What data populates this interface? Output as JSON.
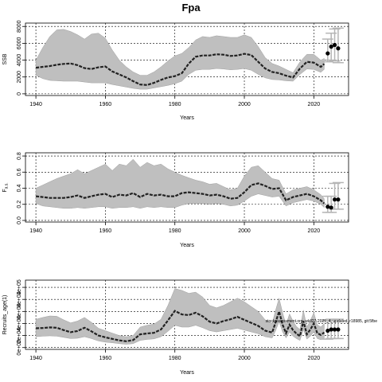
{
  "title": "Fpa",
  "chart_data": [
    {
      "type": "line",
      "ylabel": "SSB",
      "xlabel": "Years",
      "xlim": [
        1937,
        2030
      ],
      "ylim": [
        -200,
        8400
      ],
      "x_ticks": [
        1940,
        1960,
        1980,
        2000,
        2020
      ],
      "y_ticks": [
        0,
        2000,
        4000,
        6000,
        8000
      ],
      "y_tick_labels": [
        "0",
        "2000",
        "4000",
        "6000",
        "8000"
      ],
      "grid": true,
      "series": [
        {
          "x": [
            1940,
            1942,
            1944,
            1946,
            1948,
            1950,
            1952,
            1954,
            1956,
            1958,
            1960,
            1962,
            1964,
            1966,
            1968,
            1970,
            1972,
            1974,
            1976,
            1978,
            1980,
            1982,
            1984,
            1986,
            1988,
            1990,
            1992,
            1994,
            1996,
            1998,
            2000,
            2002,
            2004,
            2006,
            2008,
            2010,
            2012,
            2014,
            2016,
            2018,
            2020,
            2022,
            2023
          ],
          "median": [
            3100,
            3200,
            3300,
            3450,
            3550,
            3600,
            3400,
            3050,
            2950,
            3150,
            3250,
            2650,
            2300,
            1950,
            1500,
            1100,
            1050,
            1300,
            1650,
            1950,
            2100,
            2450,
            3600,
            4400,
            4550,
            4550,
            4700,
            4650,
            4500,
            4550,
            4750,
            4600,
            3800,
            3000,
            2600,
            2450,
            2150,
            1950,
            3000,
            3800,
            3700,
            3200,
            3550
          ],
          "lower": [
            2200,
            1800,
            1600,
            1550,
            1500,
            1500,
            1500,
            1400,
            1300,
            1300,
            1300,
            1100,
            950,
            800,
            650,
            550,
            550,
            700,
            850,
            1000,
            1200,
            1500,
            2300,
            2800,
            2900,
            2900,
            3000,
            2950,
            2850,
            2900,
            3000,
            2800,
            2300,
            1900,
            1700,
            1650,
            1550,
            1500,
            2300,
            2950,
            2900,
            2550,
            2900
          ],
          "upper": [
            4000,
            5500,
            6800,
            7600,
            7650,
            7400,
            7000,
            6500,
            7100,
            7200,
            6600,
            5200,
            4000,
            3200,
            2600,
            2200,
            2200,
            2600,
            3200,
            3900,
            4500,
            4800,
            5500,
            6400,
            6800,
            6700,
            6900,
            6800,
            6700,
            6700,
            7000,
            6700,
            5600,
            4300,
            3600,
            3300,
            2900,
            2500,
            3800,
            4700,
            4700,
            4000,
            4200
          ]
        }
      ],
      "projection_points": [
        {
          "x": 2024,
          "y": 4800,
          "lower": 3800,
          "upper": 6500
        },
        {
          "x": 2025,
          "y": 5600,
          "lower": 4000,
          "upper": 7200
        },
        {
          "x": 2026,
          "y": 5800,
          "lower": 3900,
          "upper": 7700
        },
        {
          "x": 2027,
          "y": 5400,
          "lower": 3700,
          "upper": 7800
        }
      ]
    },
    {
      "type": "line",
      "ylabel": "F",
      "ylabel_sub": "a.s.",
      "xlabel": "Years",
      "xlim": [
        1937,
        2030
      ],
      "ylim": [
        -0.02,
        0.84
      ],
      "x_ticks": [
        1940,
        1960,
        1980,
        2000,
        2020
      ],
      "y_ticks": [
        0.0,
        0.2,
        0.4,
        0.6,
        0.8
      ],
      "y_tick_labels": [
        "0.0",
        "0.2",
        "0.4",
        "0.6",
        "0.8"
      ],
      "grid": true,
      "series": [
        {
          "x": [
            1940,
            1942,
            1944,
            1946,
            1948,
            1950,
            1952,
            1954,
            1956,
            1958,
            1960,
            1962,
            1964,
            1966,
            1968,
            1970,
            1972,
            1974,
            1976,
            1978,
            1980,
            1982,
            1984,
            1986,
            1988,
            1990,
            1992,
            1994,
            1996,
            1998,
            2000,
            2002,
            2004,
            2006,
            2008,
            2010,
            2012,
            2014,
            2016,
            2018,
            2020,
            2022,
            2023
          ],
          "median": [
            0.3,
            0.29,
            0.28,
            0.28,
            0.28,
            0.29,
            0.31,
            0.28,
            0.3,
            0.32,
            0.33,
            0.29,
            0.32,
            0.31,
            0.34,
            0.29,
            0.33,
            0.31,
            0.32,
            0.3,
            0.3,
            0.34,
            0.35,
            0.34,
            0.33,
            0.31,
            0.32,
            0.3,
            0.27,
            0.28,
            0.35,
            0.44,
            0.46,
            0.43,
            0.39,
            0.4,
            0.25,
            0.29,
            0.31,
            0.33,
            0.3,
            0.25,
            0.21
          ],
          "lower": [
            0.21,
            0.18,
            0.17,
            0.16,
            0.15,
            0.15,
            0.16,
            0.15,
            0.16,
            0.17,
            0.17,
            0.15,
            0.16,
            0.16,
            0.17,
            0.15,
            0.17,
            0.16,
            0.17,
            0.16,
            0.16,
            0.19,
            0.21,
            0.21,
            0.21,
            0.2,
            0.21,
            0.2,
            0.18,
            0.19,
            0.24,
            0.3,
            0.33,
            0.31,
            0.29,
            0.3,
            0.18,
            0.22,
            0.24,
            0.26,
            0.24,
            0.2,
            0.16
          ],
          "upper": [
            0.4,
            0.44,
            0.48,
            0.52,
            0.55,
            0.58,
            0.63,
            0.58,
            0.62,
            0.66,
            0.7,
            0.62,
            0.7,
            0.68,
            0.76,
            0.66,
            0.72,
            0.68,
            0.7,
            0.64,
            0.6,
            0.56,
            0.53,
            0.5,
            0.48,
            0.45,
            0.46,
            0.42,
            0.38,
            0.4,
            0.55,
            0.66,
            0.68,
            0.6,
            0.52,
            0.5,
            0.33,
            0.38,
            0.4,
            0.42,
            0.38,
            0.32,
            0.27
          ]
        }
      ],
      "projection_points": [
        {
          "x": 2024,
          "y": 0.17,
          "lower": 0.1,
          "upper": 0.3
        },
        {
          "x": 2025,
          "y": 0.16,
          "lower": 0.1,
          "upper": 0.3
        },
        {
          "x": 2026,
          "y": 0.26,
          "lower": 0.14,
          "upper": 0.46
        },
        {
          "x": 2027,
          "y": 0.26,
          "lower": 0.14,
          "upper": 0.47
        }
      ]
    },
    {
      "type": "line",
      "ylabel": "Recruits_age(1)",
      "xlabel": "Years",
      "xlim": [
        1937,
        2030
      ],
      "ylim": [
        -3000,
        112000
      ],
      "x_ticks": [
        1940,
        1960,
        1980,
        2000,
        2020
      ],
      "y_ticks": [
        0,
        20000,
        40000,
        60000,
        80000,
        100000
      ],
      "y_tick_labels": [
        "0e+00",
        "2e+04",
        "4e+04",
        "6e+04",
        "8e+04",
        "1e+05"
      ],
      "grid": true,
      "annotation": "stockassessment.org, wkll27-2025_4_updated, r18985, git:5fbe",
      "series": [
        {
          "x": [
            1940,
            1942,
            1944,
            1946,
            1948,
            1950,
            1952,
            1954,
            1956,
            1958,
            1960,
            1962,
            1964,
            1966,
            1968,
            1970,
            1972,
            1974,
            1976,
            1978,
            1980,
            1982,
            1984,
            1986,
            1988,
            1990,
            1992,
            1994,
            1996,
            1998,
            2000,
            2002,
            2004,
            2006,
            2008,
            2009,
            2010,
            2011,
            2012,
            2013,
            2014,
            2015,
            2016,
            2017,
            2018,
            2019,
            2020,
            2021,
            2022,
            2023
          ],
          "median": [
            32000,
            32500,
            33500,
            33000,
            29000,
            25500,
            27500,
            33000,
            27000,
            20000,
            17000,
            14500,
            12000,
            10500,
            12500,
            22000,
            23500,
            24500,
            30000,
            45000,
            61000,
            55000,
            54000,
            58000,
            52000,
            43000,
            40000,
            44000,
            47000,
            51000,
            46000,
            41000,
            36000,
            28000,
            25000,
            42000,
            60000,
            38000,
            24000,
            38000,
            29000,
            23000,
            19000,
            44000,
            22000,
            30000,
            40000,
            24000,
            21000,
            25000
          ],
          "lower": [
            18000,
            19000,
            19500,
            19000,
            17000,
            15000,
            15500,
            18000,
            15000,
            11000,
            9000,
            8000,
            6500,
            5500,
            6500,
            12000,
            13500,
            14500,
            18000,
            27000,
            37000,
            34000,
            34000,
            37000,
            33000,
            28000,
            26000,
            28000,
            30000,
            32000,
            29000,
            26000,
            23000,
            18000,
            16000,
            28000,
            43000,
            26000,
            16000,
            26000,
            19000,
            15000,
            12000,
            30000,
            14000,
            19000,
            26000,
            15000,
            13000,
            15000
          ],
          "upper": [
            47000,
            50000,
            52500,
            52000,
            46000,
            41000,
            44000,
            50000,
            42000,
            32000,
            28000,
            24000,
            20000,
            18000,
            20000,
            34000,
            37000,
            39000,
            47000,
            70000,
            98000,
            95000,
            90000,
            92000,
            84000,
            70000,
            66000,
            70000,
            76000,
            82000,
            76000,
            68000,
            60000,
            46000,
            40000,
            62000,
            82000,
            58000,
            38000,
            56000,
            44000,
            35000,
            30000,
            62000,
            34000,
            45000,
            58000,
            38000,
            34000,
            40000
          ]
        }
      ],
      "projection_points": [
        {
          "x": 2024,
          "y": 28000,
          "lower": 14000,
          "upper": 45000
        },
        {
          "x": 2025,
          "y": 30000,
          "lower": 15000,
          "upper": 47000
        },
        {
          "x": 2026,
          "y": 30000,
          "lower": 15000,
          "upper": 47000
        },
        {
          "x": 2027,
          "y": 30000,
          "lower": 15000,
          "upper": 47000
        }
      ]
    }
  ]
}
